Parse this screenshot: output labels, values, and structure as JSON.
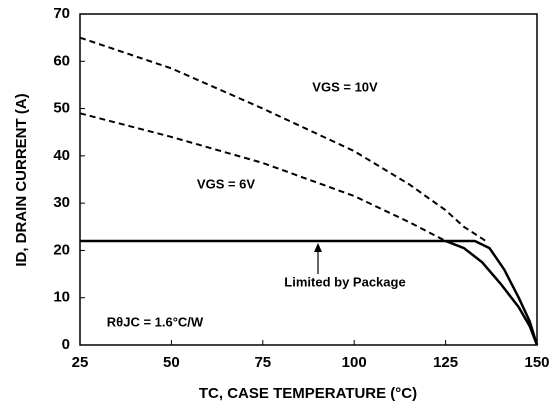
{
  "chart_data": {
    "type": "line",
    "x_label": "TC, CASE TEMPERATURE (°C)",
    "y_label": "ID, DRAIN CURRENT (A)",
    "xlim": [
      25,
      150
    ],
    "xticks": [
      25,
      50,
      75,
      100,
      125,
      150
    ],
    "ylim": [
      0,
      70
    ],
    "yticks": [
      0,
      10,
      20,
      30,
      40,
      50,
      60,
      70
    ],
    "grid": false,
    "series": [
      {
        "name": "VGS = 10V",
        "color": "#000000",
        "dashed": true,
        "x": [
          25,
          50,
          75,
          100,
          115,
          125,
          130,
          136
        ],
        "values": [
          65,
          58.5,
          50,
          41,
          34,
          28.5,
          25,
          22
        ]
      },
      {
        "name": "VGS = 6V",
        "color": "#000000",
        "dashed": true,
        "x": [
          25,
          50,
          75,
          100,
          115,
          125
        ],
        "values": [
          49,
          44,
          38.5,
          31.5,
          26,
          22
        ]
      },
      {
        "color": "#000000",
        "dashed": false,
        "x": [
          25,
          125,
          133,
          137,
          141,
          145,
          148,
          150
        ],
        "values": [
          22,
          22,
          22,
          20.5,
          16,
          10,
          5,
          0
        ]
      },
      {
        "color": "#000000",
        "dashed": false,
        "x": [
          125,
          130,
          135,
          140,
          145,
          148,
          150
        ],
        "values": [
          22,
          20.5,
          17.5,
          13,
          8,
          4,
          0
        ]
      }
    ],
    "annotations": [
      "Limited by Package",
      "RθJC = 1.6°C/W"
    ]
  }
}
